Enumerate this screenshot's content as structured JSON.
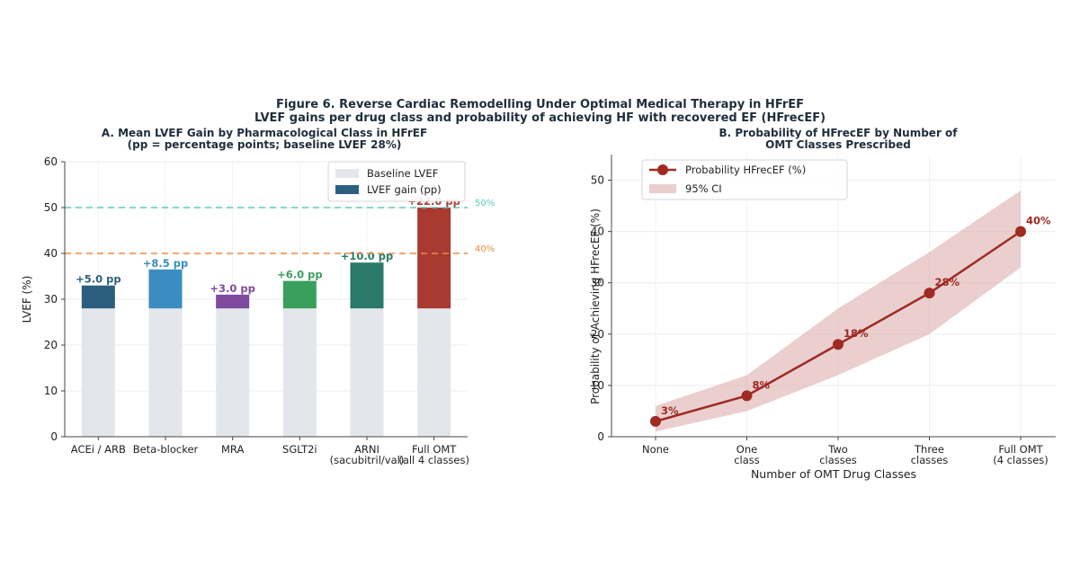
{
  "figure": {
    "title": "Figure 6. Reverse Cardiac Remodelling Under Optimal Medical Therapy in HFrEF",
    "subtitle": "LVEF gains per drug class and probability of achieving HF with recovered EF (HFrecEF)"
  },
  "chart_data": [
    {
      "type": "bar",
      "title": "A. Mean LVEF Gain by Pharmacological Class in HFrEF",
      "subtitle": "(pp = percentage points; baseline LVEF 28%)",
      "xlabel": "",
      "ylabel": "LVEF (%)",
      "ylim": [
        0,
        60
      ],
      "yticks": [
        0,
        10,
        20,
        30,
        40,
        50,
        60
      ],
      "categories": [
        [
          "ACEi / ARB"
        ],
        [
          "Beta-blocker"
        ],
        [
          "MRA"
        ],
        [
          "SGLT2i"
        ],
        [
          "ARNI",
          "(sacubitril/val)"
        ],
        [
          "Full OMT",
          "(all 4 classes)"
        ]
      ],
      "series": [
        {
          "name": "Baseline LVEF",
          "values": [
            28,
            28,
            28,
            28,
            28,
            28
          ],
          "color": "#e3e7ec"
        },
        {
          "name": "LVEF gain (pp)",
          "values": [
            5.0,
            8.5,
            3.0,
            6.0,
            10.0,
            22.0
          ],
          "colors": [
            "#2c5f7f",
            "#3a8cc1",
            "#7d4a9e",
            "#3a9e5c",
            "#2a7a6a",
            "#a83a32"
          ]
        }
      ],
      "data_labels": [
        "+5.0 pp",
        "+8.5 pp",
        "+3.0 pp",
        "+6.0 pp",
        "+10.0 pp",
        "+22.0 pp"
      ],
      "reference_lines": [
        {
          "value": 50,
          "label": "50%",
          "color": "#5ccbb8"
        },
        {
          "value": 40,
          "label": "40%",
          "color": "#f08a3c"
        }
      ],
      "legend": {
        "position": "top-right",
        "entries": [
          "Baseline LVEF",
          "LVEF gain (pp)"
        ]
      },
      "grid": true
    },
    {
      "type": "line",
      "title": "B. Probability of HFrecEF by Number of",
      "subtitle": "OMT Classes Prescribed",
      "xlabel": "Number of OMT Drug Classes",
      "ylabel": "Probability of Achieving HFrecEF (%)",
      "ylim": [
        0,
        55
      ],
      "yticks": [
        0,
        10,
        20,
        30,
        40,
        50
      ],
      "categories": [
        [
          "None"
        ],
        [
          "One",
          "class"
        ],
        [
          "Two",
          "classes"
        ],
        [
          "Three",
          "classes"
        ],
        [
          "Full OMT",
          "(4 classes)"
        ]
      ],
      "series": [
        {
          "name": "Probability HFrecEF (%)",
          "values": [
            3,
            8,
            18,
            28,
            40
          ],
          "color": "#9e2a23"
        }
      ],
      "ci": {
        "name": "95% CI",
        "lower": [
          1,
          5,
          12,
          20,
          33
        ],
        "upper": [
          6,
          12,
          25,
          36,
          48
        ],
        "color": "#d9a8a6"
      },
      "data_labels": [
        "3%",
        "8%",
        "18%",
        "28%",
        "40%"
      ],
      "legend": {
        "position": "top-left",
        "entries": [
          "Probability HFrecEF (%)",
          "95% CI"
        ]
      },
      "grid": true
    }
  ]
}
